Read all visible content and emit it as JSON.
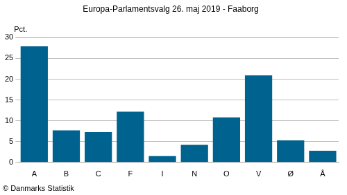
{
  "chart_data": {
    "type": "bar",
    "title": "Europa-Parlamentsvalg 26. maj 2019 - Faaborg",
    "y_label": "Pct.",
    "source": "© Danmarks Statistik",
    "categories": [
      "A",
      "B",
      "C",
      "F",
      "I",
      "N",
      "O",
      "V",
      "Ø",
      "Å"
    ],
    "values": [
      27.9,
      7.7,
      7.3,
      12.2,
      1.5,
      4.2,
      10.8,
      20.9,
      5.3,
      2.8
    ],
    "color": "#00628f",
    "ylim": [
      0,
      30
    ],
    "yticks": [
      0,
      5,
      10,
      15,
      20,
      25,
      30
    ],
    "grid": true
  }
}
